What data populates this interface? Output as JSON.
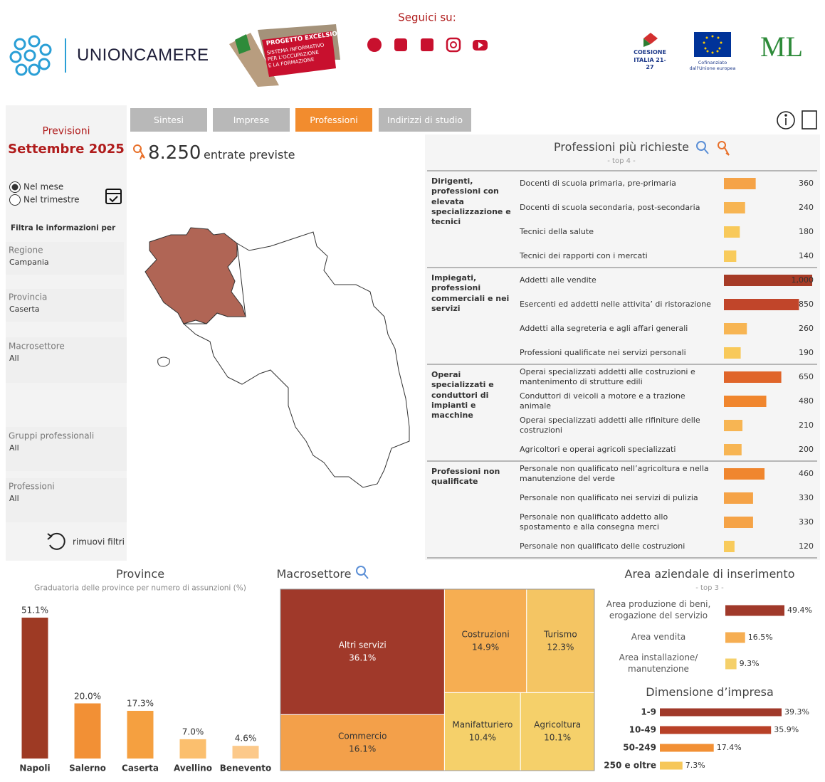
{
  "header": {
    "follow": "Seguici su:",
    "brand": "UNIONCAMERE",
    "excelsior": [
      "PROGETTO EXCELSIOR",
      "SISTEMA INFORMATIVO",
      "PER L'OCCUPAZIONE",
      "E LA FORMAZIONE"
    ],
    "coesione": "COESIONE ITALIA 21-27",
    "eu": "Cofinanziato dall'Unione europea",
    "ministry": "ML"
  },
  "sidebar": {
    "title": "Previsioni",
    "period": "Settembre 2025",
    "options": [
      "Nel mese",
      "Nel trimestre"
    ],
    "selected": 0,
    "filter_title": "Filtra le informazioni per",
    "filters": [
      {
        "label": "Regione",
        "value": "Campania"
      },
      {
        "label": "Provincia",
        "value": "Caserta"
      },
      {
        "label": "Macrosettore",
        "value": "All"
      },
      {
        "label": "Gruppi professionali",
        "value": "All"
      },
      {
        "label": "Professioni",
        "value": "All"
      }
    ],
    "reset": "rimuovi filtri"
  },
  "tabs": {
    "items": [
      "Sintesi",
      "Imprese",
      "Professioni",
      "Indirizzi di studio"
    ],
    "active": 2
  },
  "kpi": {
    "value": "8.250",
    "label": "entrate previste"
  },
  "chart_data": [
    {
      "type": "grouped-hbar",
      "title": "Professioni più richieste",
      "subtitle": "- top 4 -",
      "xlim": [
        0,
        1000
      ],
      "groups": [
        {
          "name": "Dirigenti, professioni con elevata specializzazione e tecnici",
          "categories": [
            "Docenti di scuola primaria, pre-primaria",
            "Docenti di scuola secondaria, post-secondaria",
            "Tecnici della salute",
            "Tecnici dei rapporti con i mercati"
          ],
          "values": [
            360,
            240,
            180,
            140
          ],
          "colors": [
            "#f5a347",
            "#f7b553",
            "#f8c95a",
            "#f8cb5c"
          ]
        },
        {
          "name": "Impiegati, professioni commerciali e nei servizi",
          "categories": [
            "Addetti alle vendite",
            "Esercenti ed addetti nelle attivita’ di ristorazione",
            "Addetti alla segreteria e agli affari generali",
            "Professioni qualificate nei servizi personali"
          ],
          "values": [
            1000,
            850,
            260,
            190
          ],
          "value_labels": [
            "1,000",
            "850",
            "260",
            "190"
          ],
          "colors": [
            "#a63b26",
            "#c1452a",
            "#f7b553",
            "#f8c95a"
          ]
        },
        {
          "name": "Operai specializzati e conduttori di impianti e macchine",
          "categories": [
            "Operai specializzati addetti alle costruzioni e mantenimento di strutture edili",
            "Conduttori di veicoli a motore e a trazione animale",
            "Operai specializzati addetti alle rifiniture delle costruzioni",
            "Agricoltori e operai agricoli specializzati"
          ],
          "values": [
            650,
            480,
            210,
            200
          ],
          "colors": [
            "#e0652a",
            "#f0862e",
            "#f7b553",
            "#f7b553"
          ]
        },
        {
          "name": "Professioni non qualificate",
          "categories": [
            "Personale non qualificato nell’agricoltura e nella manutenzione del verde",
            "Personale non qualificato nei servizi di pulizia",
            "Personale non qualificato addetto allo spostamento e alla consegna merci",
            "Personale non qualificato delle costruzioni"
          ],
          "values": [
            460,
            330,
            330,
            120
          ],
          "colors": [
            "#f0862e",
            "#f5a347",
            "#f5a347",
            "#f8cb5c"
          ]
        }
      ]
    },
    {
      "type": "bar",
      "title": "Province",
      "subtitle": "Graduatoria delle province per numero di assunzioni (%)",
      "categories": [
        "Napoli",
        "Salerno",
        "Caserta",
        "Avellino",
        "Benevento"
      ],
      "values": [
        51.1,
        20.0,
        17.3,
        7.0,
        4.6
      ],
      "value_labels": [
        "51.1%",
        "20.0%",
        "17.3%",
        "7.0%",
        "4.6%"
      ],
      "colors": [
        "#9e3a24",
        "#f29035",
        "#f5a040",
        "#fbbf6e",
        "#fcc98a"
      ]
    },
    {
      "type": "treemap",
      "title": "Macrosettore",
      "categories": [
        "Altri servizi",
        "Commercio",
        "Costruzioni",
        "Turismo",
        "Manifatturiero",
        "Agricoltura"
      ],
      "values": [
        36.1,
        16.1,
        14.9,
        12.3,
        10.4,
        10.1
      ],
      "value_labels": [
        "36.1%",
        "16.1%",
        "14.9%",
        "12.3%",
        "10.4%",
        "10.1%"
      ],
      "colors": [
        "#a0392a",
        "#f3a04a",
        "#f6ae52",
        "#f4c563",
        "#f5d06a",
        "#f5d06a"
      ]
    },
    {
      "type": "hbar",
      "title": "Area aziendale di inserimento",
      "subtitle": "- top 3 -",
      "categories": [
        "Area produzione di beni, erogazione del servizio",
        "Area vendita",
        "Area installazione/ manutenzione"
      ],
      "values": [
        49.4,
        16.5,
        9.3
      ],
      "value_labels": [
        "49.4%",
        "16.5%",
        "9.3%"
      ],
      "colors": [
        "#a0392a",
        "#f6ae52",
        "#f5d06a"
      ]
    },
    {
      "type": "hbar",
      "title": "Dimensione d’impresa",
      "categories": [
        "1-9",
        "10-49",
        "50-249",
        "250 e oltre"
      ],
      "values": [
        39.3,
        35.9,
        17.4,
        7.3
      ],
      "value_labels": [
        "39.3%",
        "35.9%",
        "17.4%",
        "7.3%"
      ],
      "colors": [
        "#a0392a",
        "#b84128",
        "#f29035",
        "#f6c75a"
      ]
    }
  ]
}
